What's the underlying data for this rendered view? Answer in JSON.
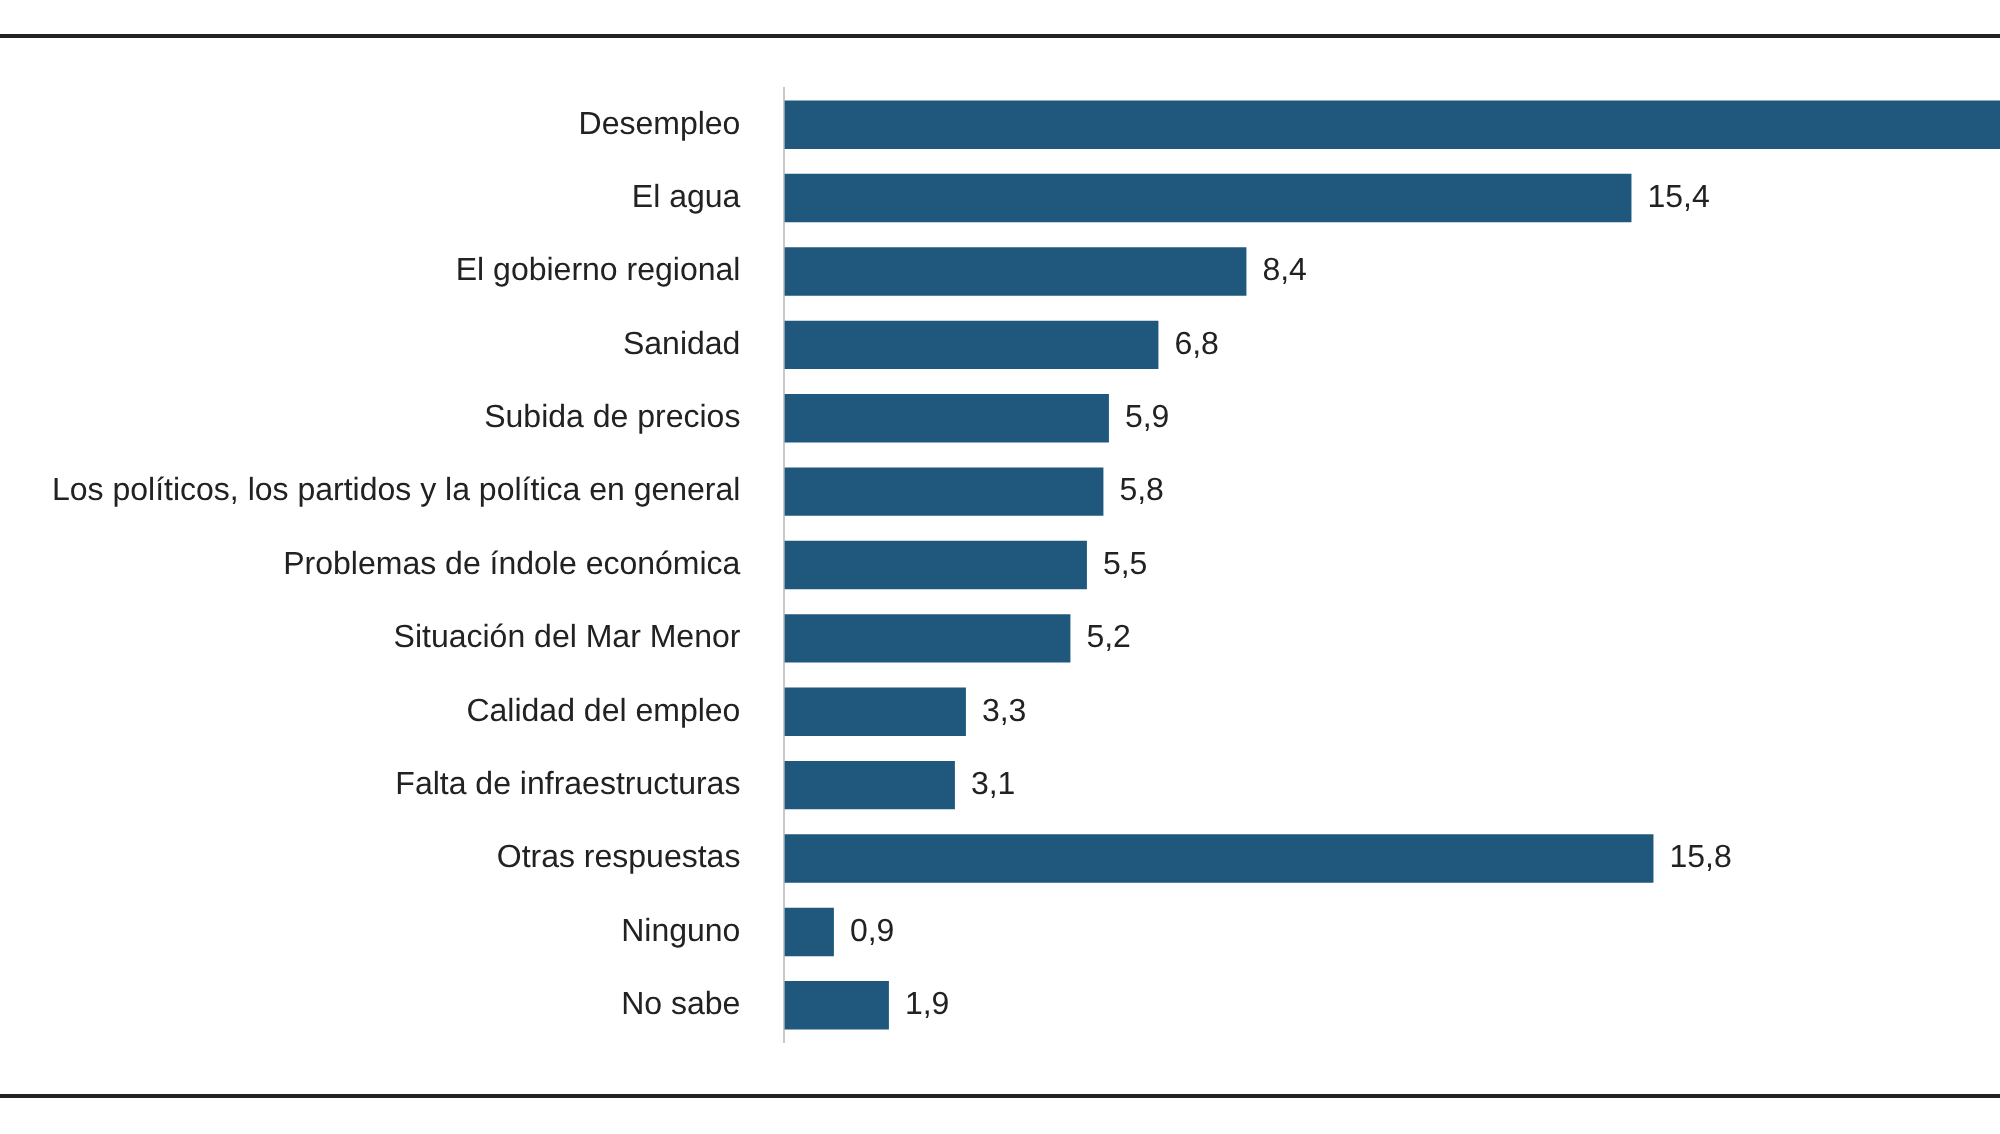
{
  "chart_data": {
    "type": "bar",
    "orientation": "horizontal",
    "categories": [
      "Desempleo",
      "El agua",
      "El gobierno regional",
      "Sanidad",
      "Subida de precios",
      "Los políticos, los partidos y la política en general",
      "Problemas de índole económica",
      "Situación del Mar Menor",
      "Calidad del empleo",
      "Falta de infraestructuras",
      "Otras respuestas",
      "Ninguno",
      "No sabe"
    ],
    "values": [
      22.1,
      15.4,
      8.4,
      6.8,
      5.9,
      5.8,
      5.5,
      5.2,
      3.3,
      3.1,
      15.8,
      0.9,
      1.9
    ],
    "value_labels": [
      null,
      "15,4",
      "8,4",
      "6,8",
      "5,9",
      "5,8",
      "5,5",
      "5,2",
      "3,3",
      "3,1",
      "15,8",
      "0,9",
      "1,9"
    ],
    "color": "#1f587c",
    "legend": false
  }
}
